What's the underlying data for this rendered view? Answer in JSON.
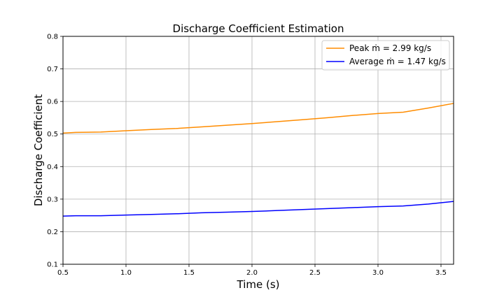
{
  "chart_data": {
    "type": "line",
    "title": "Discharge Coefficient Estimation",
    "xlabel": "Time (s)",
    "ylabel": "Discharge Coefficient",
    "xlim": [
      0.5,
      3.6
    ],
    "ylim": [
      0.1,
      0.8
    ],
    "xticks": [
      "0.5",
      "1.0",
      "1.5",
      "2.0",
      "2.5",
      "3.0",
      "3.5"
    ],
    "yticks": [
      "0.1",
      "0.2",
      "0.3",
      "0.4",
      "0.5",
      "0.6",
      "0.7",
      "0.8"
    ],
    "grid": true,
    "legend_position": "top-right",
    "series": [
      {
        "name": "Peak ṁ = 2.99 kg/s",
        "color": "#ff8c00",
        "x": [
          0.5,
          0.6,
          0.8,
          1.0,
          1.2,
          1.4,
          1.6,
          1.8,
          2.0,
          2.2,
          2.4,
          2.6,
          2.8,
          3.0,
          3.2,
          3.4,
          3.6
        ],
        "y": [
          0.503,
          0.505,
          0.506,
          0.51,
          0.514,
          0.517,
          0.522,
          0.527,
          0.532,
          0.538,
          0.544,
          0.55,
          0.557,
          0.563,
          0.567,
          0.58,
          0.594
        ]
      },
      {
        "name": "Average ṁ = 1.47 kg/s",
        "color": "#0000ff",
        "x": [
          0.5,
          0.6,
          0.8,
          1.0,
          1.2,
          1.4,
          1.6,
          1.8,
          2.0,
          2.2,
          2.4,
          2.6,
          2.8,
          3.0,
          3.2,
          3.4,
          3.6
        ],
        "y": [
          0.248,
          0.249,
          0.249,
          0.251,
          0.253,
          0.255,
          0.258,
          0.26,
          0.262,
          0.265,
          0.268,
          0.271,
          0.274,
          0.277,
          0.279,
          0.285,
          0.293
        ]
      }
    ]
  }
}
